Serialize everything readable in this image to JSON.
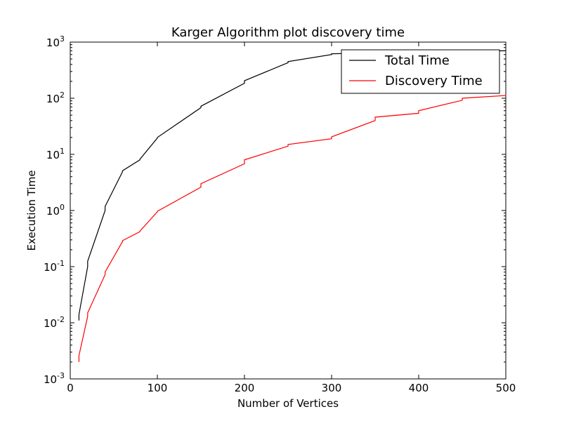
{
  "chart_data": {
    "type": "line",
    "title": "Karger Algorithm plot discovery time",
    "xlabel": "Number of Vertices",
    "ylabel": "Execution Time",
    "xlim": [
      0,
      500
    ],
    "ylim": [
      0.001,
      1000
    ],
    "yscale": "log",
    "grid": false,
    "legend_position": "top-right",
    "x_ticks": [
      {
        "value": 0,
        "label": "0"
      },
      {
        "value": 100,
        "label": "100"
      },
      {
        "value": 200,
        "label": "200"
      },
      {
        "value": 300,
        "label": "300"
      },
      {
        "value": 400,
        "label": "400"
      },
      {
        "value": 500,
        "label": "500"
      }
    ],
    "y_ticks": [
      {
        "value": 0.001,
        "base": "10",
        "exp": "-3"
      },
      {
        "value": 0.01,
        "base": "10",
        "exp": "-2"
      },
      {
        "value": 0.1,
        "base": "10",
        "exp": "-1"
      },
      {
        "value": 1,
        "base": "10",
        "exp": "0"
      },
      {
        "value": 10,
        "base": "10",
        "exp": "1"
      },
      {
        "value": 100,
        "base": "10",
        "exp": "2"
      },
      {
        "value": 1000,
        "base": "10",
        "exp": "3"
      }
    ],
    "series": [
      {
        "name": "Total Time",
        "color": "#000000",
        "points": [
          [
            10,
            0.011
          ],
          [
            10,
            0.014
          ],
          [
            20,
            0.1
          ],
          [
            20,
            0.125
          ],
          [
            40,
            1.0
          ],
          [
            40,
            1.18
          ],
          [
            60,
            4.9
          ],
          [
            60,
            5.1
          ],
          [
            80,
            8.0
          ],
          [
            80,
            8.2
          ],
          [
            100,
            19.5
          ],
          [
            100,
            20
          ],
          [
            150,
            68
          ],
          [
            150,
            72
          ],
          [
            200,
            185
          ],
          [
            200,
            205
          ],
          [
            250,
            430
          ],
          [
            250,
            450
          ],
          [
            300,
            600
          ],
          [
            300,
            620
          ],
          [
            350,
            640
          ],
          [
            350,
            650
          ],
          [
            400,
            660
          ],
          [
            400,
            670
          ],
          [
            450,
            680
          ],
          [
            450,
            690
          ],
          [
            500,
            700
          ],
          [
            500,
            710
          ]
        ]
      },
      {
        "name": "Discovery Time",
        "color": "#ff0000",
        "points": [
          [
            10,
            0.002
          ],
          [
            10,
            0.0026
          ],
          [
            20,
            0.013
          ],
          [
            20,
            0.015
          ],
          [
            40,
            0.072
          ],
          [
            40,
            0.08
          ],
          [
            60,
            0.28
          ],
          [
            60,
            0.29
          ],
          [
            80,
            0.42
          ],
          [
            80,
            0.43
          ],
          [
            100,
            0.95
          ],
          [
            100,
            0.97
          ],
          [
            150,
            2.6
          ],
          [
            150,
            3.0
          ],
          [
            200,
            6.8
          ],
          [
            200,
            8.0
          ],
          [
            250,
            14
          ],
          [
            250,
            15
          ],
          [
            300,
            19
          ],
          [
            300,
            20.5
          ],
          [
            350,
            40
          ],
          [
            350,
            46
          ],
          [
            400,
            54
          ],
          [
            400,
            60
          ],
          [
            450,
            92
          ],
          [
            450,
            100
          ],
          [
            500,
            112
          ],
          [
            500,
            115
          ]
        ]
      }
    ]
  }
}
